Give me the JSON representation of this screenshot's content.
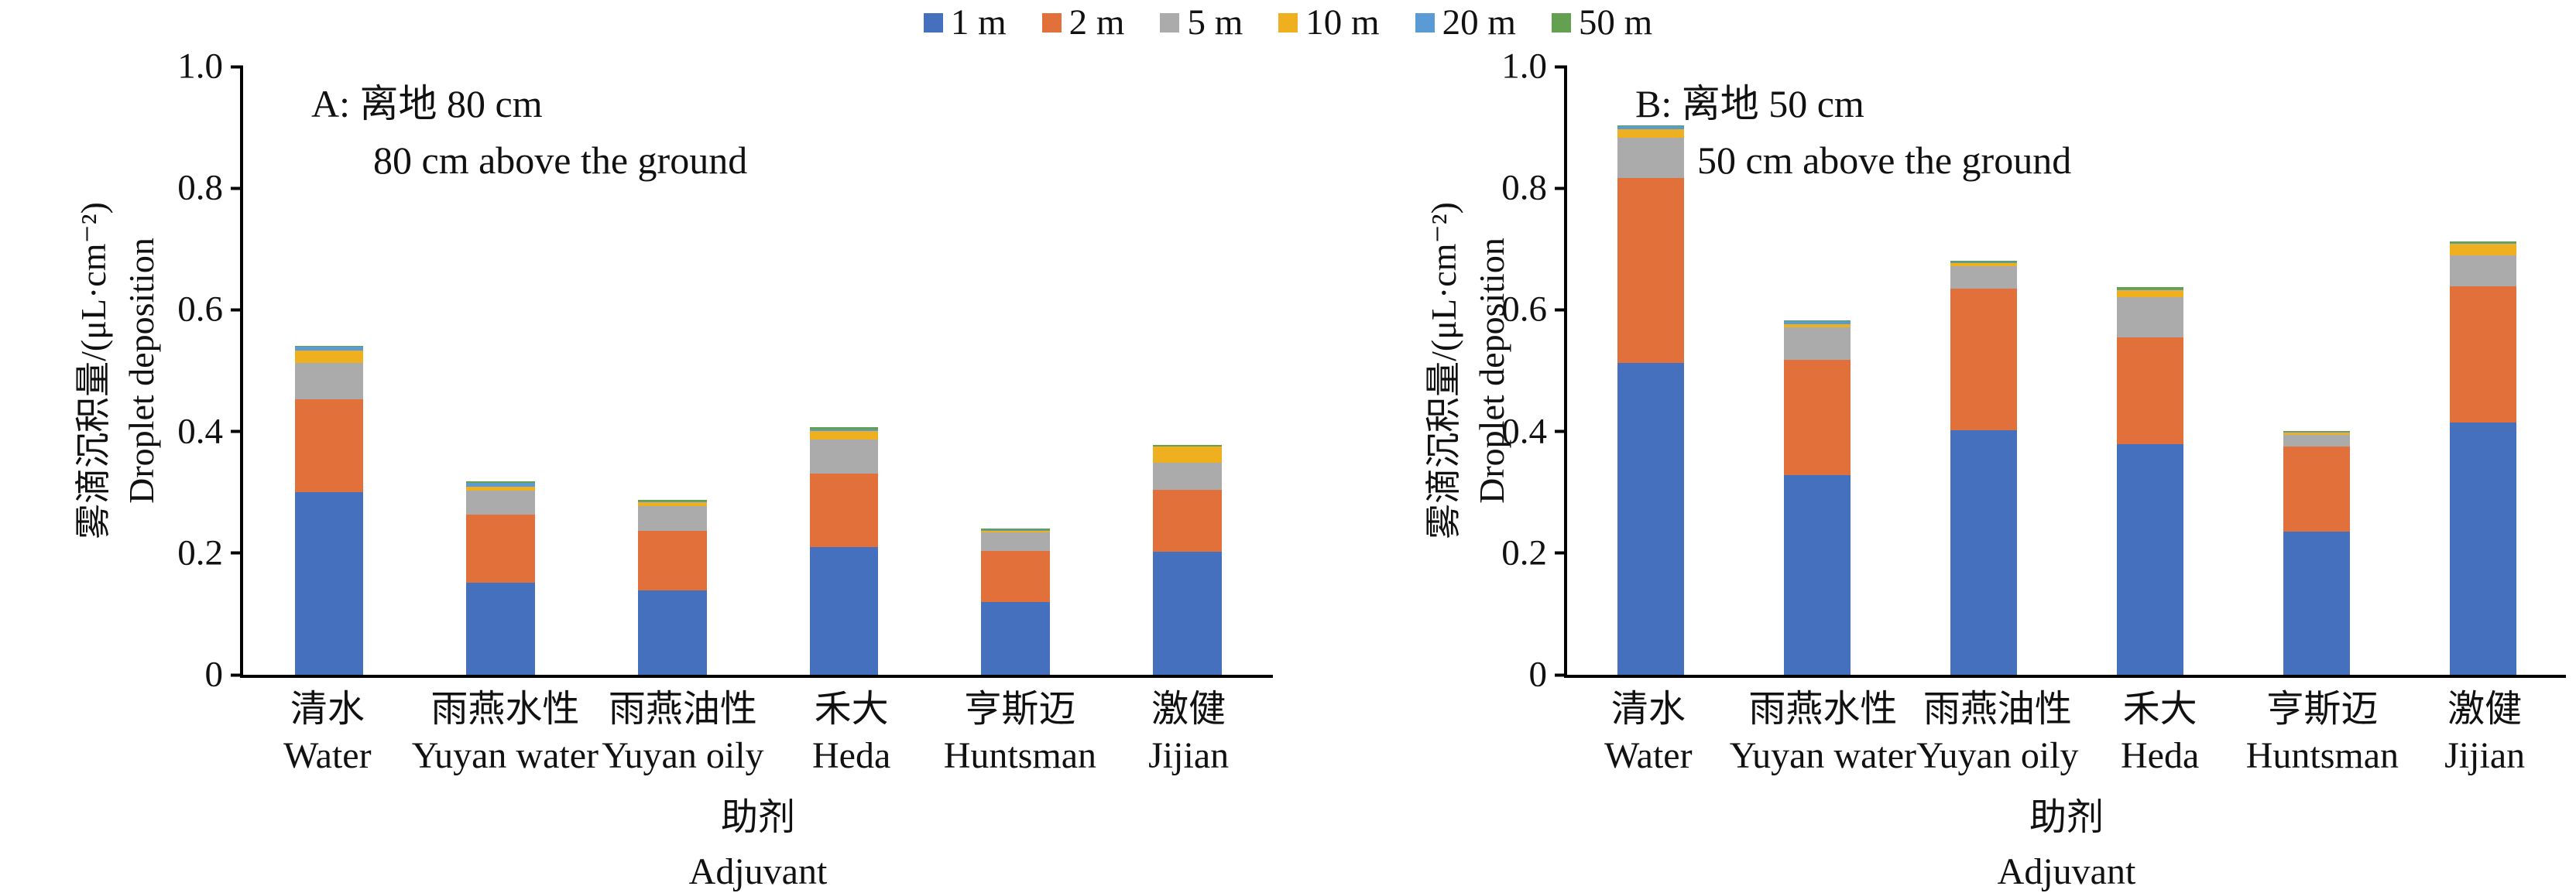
{
  "legend": {
    "items": [
      {
        "label": "1 m",
        "color": "#4470BE"
      },
      {
        "label": "2 m",
        "color": "#E2703A"
      },
      {
        "label": "5 m",
        "color": "#ABABAB"
      },
      {
        "label": "10 m",
        "color": "#EFB020"
      },
      {
        "label": "20 m",
        "color": "#5B9BD5"
      },
      {
        "label": "50 m",
        "color": "#63A04F"
      }
    ]
  },
  "axes": {
    "ylabel_zh": "雾滴沉积量/(μL·cm⁻²)",
    "ylabel_en": "Droplet deposition",
    "xlabel_zh": "助剂",
    "xlabel_en": "Adjuvant"
  },
  "chart_data": [
    {
      "panel": "A",
      "type": "bar",
      "stacked": true,
      "title_line1": "A: 离地 80 cm",
      "title_line2": "80 cm above the ground",
      "ylim": [
        0,
        1.0
      ],
      "yticks": [
        "0",
        "0.2",
        "0.4",
        "0.6",
        "0.8",
        "1.0"
      ],
      "grid": false,
      "legend_position": "top-center",
      "categories": [
        {
          "zh": "清水",
          "en": "Water"
        },
        {
          "zh": "雨燕水性",
          "en": "Yuyan water"
        },
        {
          "zh": "雨燕油性",
          "en": "Yuyan oily"
        },
        {
          "zh": "禾大",
          "en": "Heda"
        },
        {
          "zh": "亨斯迈",
          "en": "Huntsman"
        },
        {
          "zh": "激健",
          "en": "Jijian"
        }
      ],
      "series": [
        {
          "name": "1 m",
          "color": "#4470BE",
          "values": [
            0.3,
            0.152,
            0.139,
            0.21,
            0.12,
            0.202
          ]
        },
        {
          "name": "2 m",
          "color": "#E2703A",
          "values": [
            0.153,
            0.111,
            0.098,
            0.121,
            0.084,
            0.102
          ]
        },
        {
          "name": "5 m",
          "color": "#ABABAB",
          "values": [
            0.06,
            0.04,
            0.04,
            0.056,
            0.03,
            0.045
          ]
        },
        {
          "name": "10 m",
          "color": "#EFB020",
          "values": [
            0.02,
            0.006,
            0.007,
            0.014,
            0.003,
            0.026
          ]
        },
        {
          "name": "20 m",
          "color": "#5B9BD5",
          "values": [
            0.006,
            0.006,
            0.001,
            0.002,
            0.001,
            0.001
          ]
        },
        {
          "name": "50 m",
          "color": "#63A04F",
          "values": [
            0.002,
            0.003,
            0.002,
            0.004,
            0.002,
            0.002
          ]
        }
      ],
      "totals": [
        0.54,
        0.32,
        0.29,
        0.41,
        0.24,
        0.38
      ]
    },
    {
      "panel": "B",
      "type": "bar",
      "stacked": true,
      "title_line1": "B: 离地 50 cm",
      "title_line2": "50 cm above the ground",
      "ylim": [
        0,
        1.0
      ],
      "yticks": [
        "0",
        "0.2",
        "0.4",
        "0.6",
        "0.8",
        "1.0"
      ],
      "grid": false,
      "legend_position": "top-center",
      "categories": [
        {
          "zh": "清水",
          "en": "Water"
        },
        {
          "zh": "雨燕水性",
          "en": "Yuyan water"
        },
        {
          "zh": "雨燕油性",
          "en": "Yuyan oily"
        },
        {
          "zh": "禾大",
          "en": "Heda"
        },
        {
          "zh": "亨斯迈",
          "en": "Huntsman"
        },
        {
          "zh": "激健",
          "en": "Jijian"
        }
      ],
      "series": [
        {
          "name": "1 m",
          "color": "#4470BE",
          "values": [
            0.513,
            0.328,
            0.402,
            0.379,
            0.235,
            0.415
          ]
        },
        {
          "name": "2 m",
          "color": "#E2703A",
          "values": [
            0.304,
            0.19,
            0.233,
            0.176,
            0.14,
            0.224
          ]
        },
        {
          "name": "5 m",
          "color": "#ABABAB",
          "values": [
            0.066,
            0.053,
            0.037,
            0.066,
            0.019,
            0.051
          ]
        },
        {
          "name": "10 m",
          "color": "#EFB020",
          "values": [
            0.014,
            0.006,
            0.005,
            0.011,
            0.004,
            0.019
          ]
        },
        {
          "name": "20 m",
          "color": "#5B9BD5",
          "values": [
            0.005,
            0.004,
            0.001,
            0.001,
            0.001,
            0.001
          ]
        },
        {
          "name": "50 m",
          "color": "#63A04F",
          "values": [
            0.002,
            0.002,
            0.003,
            0.004,
            0.002,
            0.003
          ]
        }
      ],
      "totals": [
        0.9,
        0.58,
        0.68,
        0.64,
        0.4,
        0.71
      ]
    }
  ]
}
